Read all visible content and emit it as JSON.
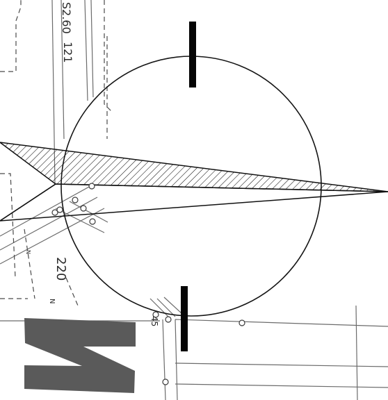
{
  "map": {
    "labels": {
      "l1": "S2.60",
      "l2": "121",
      "l3": "220",
      "l4": "N",
      "l5": "45",
      "l6": "N"
    },
    "colors": {
      "ink": "#111111",
      "faint_lines": "#6b6b6b",
      "dashed_lines": "#4a4a4a",
      "ring": "#151515",
      "wedge_fill": "#ffffff",
      "north_fill": "#5a5a5a",
      "ticks": "#050505"
    },
    "icons": {
      "north_arrow": "north-arrow-icon"
    }
  }
}
